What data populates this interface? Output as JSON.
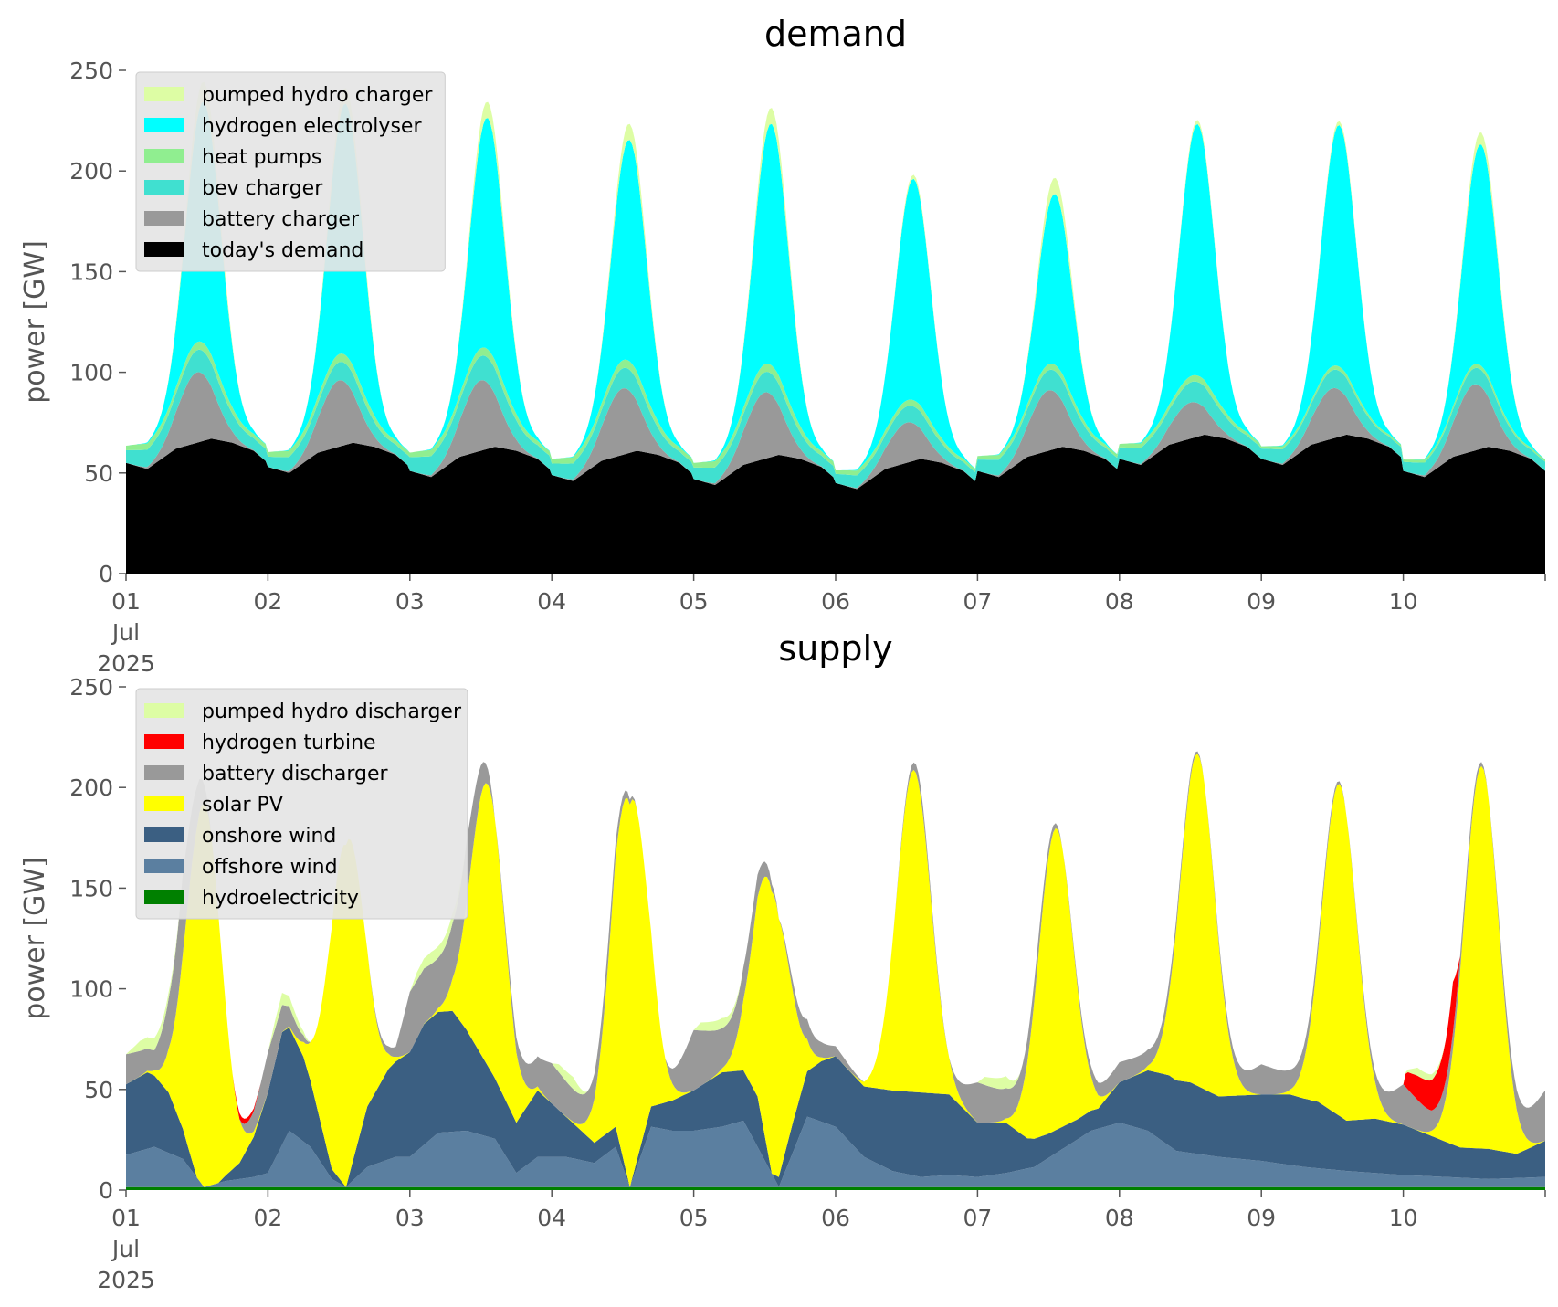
{
  "chart_data": [
    {
      "type": "area",
      "stacked": true,
      "title": "demand",
      "ylabel": "power [GW]",
      "xlabel": "",
      "ylim": [
        0,
        250
      ],
      "yticks": [
        0,
        50,
        100,
        150,
        200,
        250
      ],
      "xlim_days": [
        0,
        10
      ],
      "xticks": [
        {
          "day": 0,
          "label": "01\nJul\n2025"
        },
        {
          "day": 1,
          "label": "02"
        },
        {
          "day": 2,
          "label": "03"
        },
        {
          "day": 3,
          "label": "04"
        },
        {
          "day": 4,
          "label": "05"
        },
        {
          "day": 5,
          "label": "06"
        },
        {
          "day": 6,
          "label": "07"
        },
        {
          "day": 7,
          "label": "08"
        },
        {
          "day": 8,
          "label": "09"
        },
        {
          "day": 9,
          "label": "10"
        }
      ],
      "legend_position": "upper-left",
      "series": [
        {
          "name": "today's demand",
          "color": "#000000",
          "kind": "base",
          "base": 55,
          "profile": [
            [
              0.0,
              0
            ],
            [
              0.15,
              -3
            ],
            [
              0.35,
              7
            ],
            [
              0.6,
              12
            ],
            [
              0.75,
              10
            ],
            [
              0.9,
              6
            ],
            [
              1.0,
              0
            ]
          ],
          "day_mods": [
            0,
            -2,
            -4,
            -6,
            -8,
            -10,
            -4,
            2,
            2,
            -4
          ]
        },
        {
          "name": "battery charger",
          "color": "#999999",
          "kind": "peak",
          "center": 0.5,
          "width": 0.13,
          "peaks": [
            35,
            33,
            35,
            33,
            33,
            20,
            30,
            18,
            25,
            33
          ]
        },
        {
          "name": "bev charger",
          "color": "#40E0D0",
          "kind": "flat",
          "values": [
            11,
            9,
            12,
            10,
            10,
            8,
            10,
            10,
            9,
            8
          ]
        },
        {
          "name": "heat pumps",
          "color": "#90EE90",
          "kind": "flat",
          "values": [
            4,
            4,
            4,
            4,
            4,
            3,
            3,
            3,
            2,
            2
          ]
        },
        {
          "name": "hydrogen electrolyser",
          "color": "#00FFFF",
          "kind": "peak",
          "center": 0.55,
          "width": 0.12,
          "peaks": [
            120,
            125,
            115,
            110,
            120,
            110,
            85,
            125,
            120,
            110
          ]
        },
        {
          "name": "pumped hydro charger",
          "color": "#DDFDA4",
          "kind": "peak",
          "center": 0.55,
          "width": 0.1,
          "peaks": [
            10,
            8,
            8,
            8,
            8,
            2,
            8,
            2,
            2,
            6
          ]
        }
      ]
    },
    {
      "type": "area",
      "stacked": true,
      "title": "supply",
      "ylabel": "power [GW]",
      "xlabel": "",
      "ylim": [
        0,
        250
      ],
      "yticks": [
        0,
        50,
        100,
        150,
        200,
        250
      ],
      "xlim_days": [
        0,
        10
      ],
      "xticks": [
        {
          "day": 0,
          "label": "01\nJul\n2025"
        },
        {
          "day": 1,
          "label": "02"
        },
        {
          "day": 2,
          "label": "03"
        },
        {
          "day": 3,
          "label": "04"
        },
        {
          "day": 4,
          "label": "05"
        },
        {
          "day": 5,
          "label": "06"
        },
        {
          "day": 6,
          "label": "07"
        },
        {
          "day": 7,
          "label": "08"
        },
        {
          "day": 8,
          "label": "09"
        },
        {
          "day": 9,
          "label": "10"
        }
      ],
      "legend_position": "upper-left",
      "series": [
        {
          "name": "hydroelectricity",
          "color": "#008000",
          "kind": "const",
          "value": 1.5
        },
        {
          "name": "offshore wind",
          "color": "#5B7FA0",
          "kind": "points",
          "points": [
            [
              0,
              16
            ],
            [
              0.2,
              20
            ],
            [
              0.4,
              14
            ],
            [
              0.55,
              0
            ],
            [
              0.7,
              3
            ],
            [
              0.9,
              5
            ],
            [
              1.0,
              7
            ],
            [
              1.15,
              28
            ],
            [
              1.3,
              20
            ],
            [
              1.45,
              4
            ],
            [
              1.55,
              0
            ],
            [
              1.7,
              10
            ],
            [
              1.9,
              15
            ],
            [
              2.0,
              15
            ],
            [
              2.2,
              27
            ],
            [
              2.4,
              28
            ],
            [
              2.6,
              24
            ],
            [
              2.75,
              7
            ],
            [
              2.9,
              15
            ],
            [
              3.1,
              15
            ],
            [
              3.3,
              12
            ],
            [
              3.45,
              20
            ],
            [
              3.55,
              0
            ],
            [
              3.7,
              30
            ],
            [
              3.85,
              28
            ],
            [
              4.0,
              28
            ],
            [
              4.2,
              30
            ],
            [
              4.35,
              33
            ],
            [
              4.45,
              20
            ],
            [
              4.6,
              0
            ],
            [
              4.8,
              35
            ],
            [
              5.0,
              30
            ],
            [
              5.2,
              15
            ],
            [
              5.4,
              8
            ],
            [
              5.6,
              5
            ],
            [
              5.8,
              6
            ],
            [
              6.0,
              5
            ],
            [
              6.2,
              7
            ],
            [
              6.4,
              10
            ],
            [
              6.8,
              28
            ],
            [
              7.0,
              32
            ],
            [
              7.2,
              28
            ],
            [
              7.4,
              18
            ],
            [
              7.7,
              15
            ],
            [
              8.0,
              13
            ],
            [
              8.3,
              10
            ],
            [
              8.6,
              8
            ],
            [
              9.0,
              6
            ],
            [
              9.3,
              5
            ],
            [
              9.6,
              4
            ],
            [
              10.0,
              5
            ]
          ]
        },
        {
          "name": "onshore wind",
          "color": "#3B5F82",
          "kind": "points",
          "points": [
            [
              0,
              35
            ],
            [
              0.15,
              38
            ],
            [
              0.3,
              30
            ],
            [
              0.5,
              0
            ],
            [
              0.65,
              0
            ],
            [
              0.8,
              8
            ],
            [
              0.9,
              20
            ],
            [
              1.0,
              40
            ],
            [
              1.1,
              56
            ],
            [
              1.25,
              42
            ],
            [
              1.45,
              5
            ],
            [
              1.55,
              0
            ],
            [
              1.7,
              30
            ],
            [
              1.85,
              45
            ],
            [
              2.0,
              52
            ],
            [
              2.1,
              60
            ],
            [
              2.3,
              60
            ],
            [
              2.45,
              45
            ],
            [
              2.6,
              30
            ],
            [
              2.75,
              25
            ],
            [
              2.9,
              33
            ],
            [
              3.1,
              20
            ],
            [
              3.3,
              10
            ],
            [
              3.45,
              10
            ],
            [
              3.55,
              0
            ],
            [
              3.7,
              10
            ],
            [
              3.85,
              15
            ],
            [
              4.0,
              20
            ],
            [
              4.2,
              27
            ],
            [
              4.35,
              25
            ],
            [
              4.45,
              25
            ],
            [
              4.55,
              0
            ],
            [
              4.7,
              15
            ],
            [
              4.9,
              30
            ],
            [
              5.0,
              35
            ],
            [
              5.2,
              35
            ],
            [
              5.4,
              40
            ],
            [
              5.6,
              42
            ],
            [
              5.8,
              40
            ],
            [
              6.0,
              27
            ],
            [
              6.2,
              25
            ],
            [
              6.35,
              15
            ],
            [
              6.5,
              12
            ],
            [
              6.7,
              10
            ],
            [
              6.85,
              10
            ],
            [
              7.0,
              20
            ],
            [
              7.2,
              30
            ],
            [
              7.35,
              35
            ],
            [
              7.5,
              35
            ],
            [
              7.7,
              30
            ],
            [
              8.0,
              33
            ],
            [
              8.2,
              35
            ],
            [
              8.4,
              33
            ],
            [
              8.6,
              25
            ],
            [
              8.8,
              27
            ],
            [
              9.0,
              25
            ],
            [
              9.2,
              20
            ],
            [
              9.4,
              15
            ],
            [
              9.6,
              15
            ],
            [
              9.8,
              12
            ],
            [
              10.0,
              18
            ]
          ]
        },
        {
          "name": "solar PV",
          "color": "#FFFF00",
          "kind": "peak",
          "center": 0.55,
          "width": 0.12,
          "peaks": [
            190,
            170,
            140,
            190,
            140,
            160,
            150,
            165,
            165,
            190
          ]
        },
        {
          "name": "battery discharger",
          "color": "#999999",
          "kind": "points",
          "points": [
            [
              0,
              15
            ],
            [
              0.2,
              10
            ],
            [
              0.4,
              40
            ],
            [
              0.6,
              0
            ],
            [
              0.8,
              0
            ],
            [
              1.0,
              20
            ],
            [
              1.3,
              0
            ],
            [
              1.5,
              0
            ],
            [
              1.7,
              0
            ],
            [
              1.9,
              5
            ],
            [
              2.0,
              30
            ],
            [
              2.2,
              25
            ],
            [
              2.4,
              30
            ],
            [
              2.6,
              0
            ],
            [
              2.8,
              10
            ],
            [
              3.0,
              20
            ],
            [
              3.2,
              15
            ],
            [
              3.4,
              10
            ],
            [
              3.6,
              0
            ],
            [
              3.8,
              0
            ],
            [
              4.0,
              30
            ],
            [
              4.2,
              20
            ],
            [
              4.4,
              15
            ],
            [
              4.6,
              0
            ],
            [
              4.8,
              10
            ],
            [
              5.0,
              5
            ],
            [
              5.2,
              0
            ],
            [
              5.4,
              0
            ],
            [
              5.6,
              5
            ],
            [
              5.8,
              0
            ],
            [
              6.0,
              20
            ],
            [
              6.2,
              15
            ],
            [
              6.4,
              10
            ],
            [
              6.6,
              0
            ],
            [
              6.8,
              5
            ],
            [
              7.0,
              10
            ],
            [
              7.2,
              8
            ],
            [
              7.4,
              5
            ],
            [
              7.6,
              0
            ],
            [
              7.8,
              5
            ],
            [
              8.0,
              15
            ],
            [
              8.2,
              10
            ],
            [
              8.4,
              5
            ],
            [
              8.6,
              0
            ],
            [
              8.8,
              5
            ],
            [
              9.0,
              20
            ],
            [
              9.2,
              10
            ],
            [
              9.4,
              8
            ],
            [
              9.6,
              0
            ],
            [
              9.8,
              10
            ],
            [
              10.0,
              25
            ]
          ]
        },
        {
          "name": "hydrogen turbine",
          "color": "#FF0000",
          "kind": "points",
          "points": [
            [
              0,
              0
            ],
            [
              0.75,
              0
            ],
            [
              0.8,
              3
            ],
            [
              0.88,
              2
            ],
            [
              0.95,
              0
            ],
            [
              9.0,
              0
            ],
            [
              9.02,
              8
            ],
            [
              9.1,
              12
            ],
            [
              9.2,
              15
            ],
            [
              9.3,
              20
            ],
            [
              9.35,
              25
            ],
            [
              9.4,
              0
            ],
            [
              10.0,
              0
            ]
          ]
        },
        {
          "name": "pumped hydro discharger",
          "color": "#DDFDA4",
          "kind": "points",
          "points": [
            [
              0,
              0
            ],
            [
              0.1,
              5
            ],
            [
              0.2,
              6
            ],
            [
              0.3,
              3
            ],
            [
              0.4,
              0
            ],
            [
              1.0,
              0
            ],
            [
              1.05,
              4
            ],
            [
              1.1,
              6
            ],
            [
              1.2,
              4
            ],
            [
              1.3,
              0
            ],
            [
              2.0,
              0
            ],
            [
              2.05,
              4
            ],
            [
              2.15,
              6
            ],
            [
              2.3,
              5
            ],
            [
              2.4,
              0
            ],
            [
              3.0,
              0
            ],
            [
              3.05,
              4
            ],
            [
              3.15,
              6
            ],
            [
              3.25,
              0
            ],
            [
              4.0,
              0
            ],
            [
              4.05,
              4
            ],
            [
              4.2,
              5
            ],
            [
              4.35,
              0
            ],
            [
              6.0,
              0
            ],
            [
              6.05,
              4
            ],
            [
              6.2,
              6
            ],
            [
              6.3,
              0
            ],
            [
              9.0,
              0
            ],
            [
              9.1,
              4
            ],
            [
              9.2,
              3
            ],
            [
              9.3,
              0
            ],
            [
              10.0,
              0
            ]
          ]
        }
      ]
    }
  ]
}
